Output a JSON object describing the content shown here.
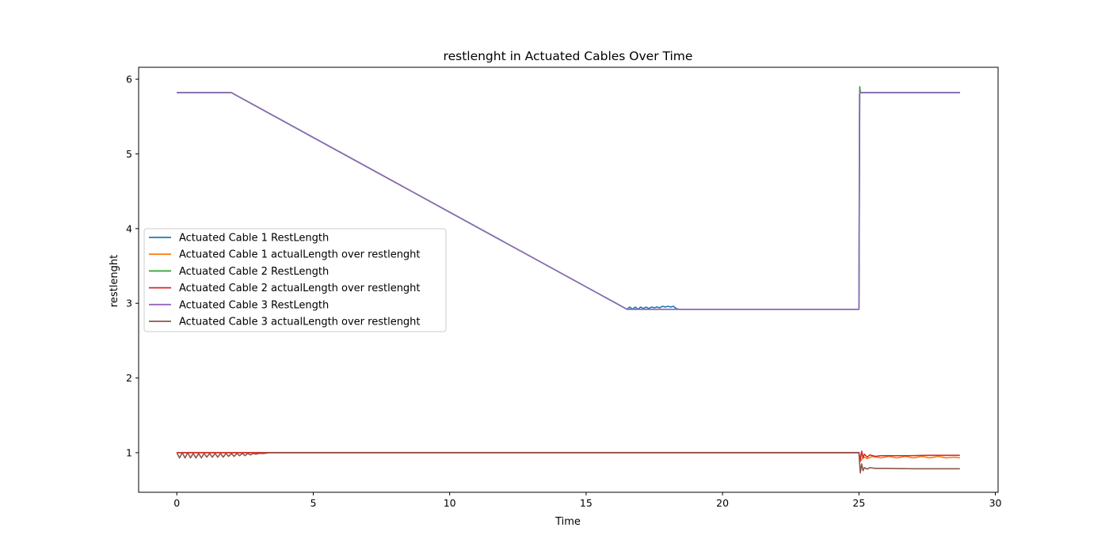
{
  "chart_data": {
    "type": "line",
    "title": "restlenght in Actuated Cables Over Time",
    "xlabel": "Time",
    "ylabel": "restlenght",
    "xlim": [
      -1.4,
      30.1
    ],
    "ylim": [
      0.47,
      6.16
    ],
    "xticks": [
      0,
      5,
      10,
      15,
      20,
      25,
      30
    ],
    "yticks": [
      1,
      2,
      3,
      4,
      5,
      6
    ],
    "grid": false,
    "legend_position": "center-left",
    "series": [
      {
        "name": "Actuated Cable 1 RestLength",
        "color": "#1f77b4",
        "x": [
          0,
          2,
          16.5,
          16.6,
          16.7,
          16.8,
          16.9,
          17.0,
          17.1,
          17.2,
          17.3,
          17.4,
          17.5,
          17.6,
          17.7,
          17.8,
          17.9,
          18.0,
          18.1,
          18.2,
          18.3,
          18.4,
          25.0,
          25.02,
          25.05,
          28.7
        ],
        "y": [
          5.82,
          5.82,
          2.92,
          2.95,
          2.92,
          2.95,
          2.92,
          2.95,
          2.93,
          2.95,
          2.93,
          2.95,
          2.94,
          2.95,
          2.94,
          2.96,
          2.95,
          2.96,
          2.95,
          2.96,
          2.93,
          2.92,
          2.92,
          5.8,
          5.82,
          5.82
        ]
      },
      {
        "name": "Actuated Cable 1 actualLength over restlenght",
        "color": "#ff7f0e",
        "x": [
          0,
          3.6,
          25.0,
          25.05,
          25.1,
          25.2,
          25.3,
          25.5,
          25.8,
          26.1,
          26.4,
          26.7,
          27.0,
          27.3,
          27.6,
          27.9,
          28.2,
          28.5,
          28.7
        ],
        "y": [
          1.0,
          1.0,
          1.0,
          0.88,
          0.91,
          0.94,
          0.92,
          0.95,
          0.93,
          0.95,
          0.93,
          0.95,
          0.93,
          0.95,
          0.93,
          0.95,
          0.93,
          0.94,
          0.93
        ]
      },
      {
        "name": "Actuated Cable 2 RestLength",
        "color": "#2ca02c",
        "x": [
          0,
          2,
          16.5,
          25.0,
          25.03,
          25.05,
          25.1,
          28.7
        ],
        "y": [
          5.82,
          5.82,
          2.92,
          2.92,
          5.9,
          5.82,
          5.82,
          5.82
        ]
      },
      {
        "name": "Actuated Cable 2 actualLength over restlenght",
        "color": "#d62728",
        "x": [
          0,
          3.6,
          25.0,
          25.05,
          25.1,
          25.15,
          25.2,
          25.3,
          25.4,
          25.6,
          25.8,
          26.2,
          26.8,
          27.5,
          28.7
        ],
        "y": [
          1.0,
          1.0,
          1.0,
          0.9,
          1.02,
          0.93,
          0.98,
          0.94,
          0.97,
          0.95,
          0.96,
          0.96,
          0.96,
          0.965,
          0.965
        ]
      },
      {
        "name": "Actuated Cable 3 RestLength",
        "color": "#9467bd",
        "x": [
          0,
          2,
          16.5,
          25.0,
          25.03,
          28.7
        ],
        "y": [
          5.82,
          5.82,
          2.92,
          2.92,
          5.82,
          5.82
        ]
      },
      {
        "name": "Actuated Cable 3 actualLength over restlenght",
        "color": "#8c564b",
        "x": [
          0,
          0.1,
          0.2,
          0.3,
          0.4,
          0.5,
          0.6,
          0.7,
          0.8,
          0.9,
          1.0,
          1.1,
          1.2,
          1.3,
          1.4,
          1.5,
          1.6,
          1.7,
          1.8,
          1.9,
          2.0,
          2.1,
          2.2,
          2.3,
          2.4,
          2.5,
          2.6,
          2.7,
          2.8,
          2.9,
          3.0,
          3.2,
          3.4,
          3.6,
          25.0,
          25.05,
          25.1,
          25.15,
          25.2,
          25.3,
          25.4,
          25.6,
          26.0,
          27.0,
          28.7
        ],
        "y": [
          1.0,
          0.93,
          1.0,
          0.93,
          1.0,
          0.93,
          0.99,
          0.93,
          0.99,
          0.93,
          0.99,
          0.94,
          0.99,
          0.94,
          0.99,
          0.94,
          0.99,
          0.94,
          0.99,
          0.95,
          0.99,
          0.95,
          0.99,
          0.96,
          0.99,
          0.96,
          0.99,
          0.97,
          0.99,
          0.98,
          0.99,
          0.99,
          1.0,
          1.0,
          1.0,
          0.73,
          0.85,
          0.76,
          0.8,
          0.78,
          0.8,
          0.79,
          0.79,
          0.785,
          0.785
        ]
      }
    ]
  }
}
